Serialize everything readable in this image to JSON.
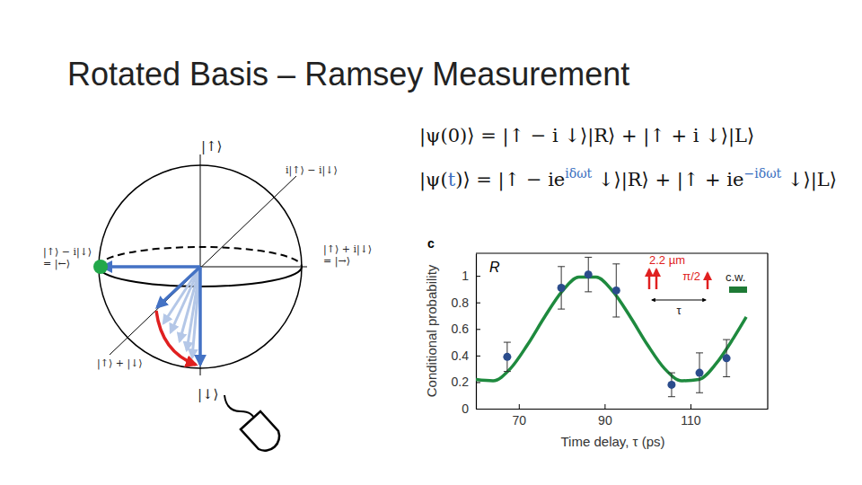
{
  "slide": {
    "title": "Rotated Basis – Ramsey Measurement",
    "equations": [
      [
        {
          "text": "|ψ(0)⟩ = |↑ − i ↓⟩|R⟩ + |↑ + i ↓⟩|L⟩",
          "sup": false
        }
      ],
      [
        {
          "text": "|ψ(",
          "sup": false
        },
        {
          "text": "t",
          "sup": false
        },
        {
          "text": ")⟩ = |↑ − ie",
          "sup": false
        },
        {
          "text": "iδωt",
          "sup": true
        },
        {
          "text": " ↓⟩|R⟩ + |↑ + ie",
          "sup": false
        },
        {
          "text": "−iδωt",
          "sup": true
        },
        {
          "text": " ↓⟩|L⟩",
          "sup": false
        }
      ]
    ],
    "sphere": {
      "top": "|↑⟩",
      "bottom": "|↓⟩",
      "back": "i|↑⟩ − i|↓⟩",
      "left": [
        "|↑⟩ − i|↓⟩",
        "= |←⟩"
      ],
      "right": [
        "|↑⟩ + i|↓⟩",
        "= |→⟩"
      ],
      "front": "|↑⟩ + |↓⟩"
    }
  },
  "chart_data": {
    "type": "scatter",
    "panel_label": "c",
    "annotation": "R",
    "x_label": "Time delay, τ (ps)",
    "y_label": "Conditional probability",
    "xlim": [
      60,
      128
    ],
    "xticks": [
      70,
      90,
      110
    ],
    "ylim": [
      0,
      1.17
    ],
    "yticks": [
      0,
      0.2,
      0.4,
      0.6,
      0.8,
      1
    ],
    "inset": {
      "distance_label": "2.2 µm",
      "pulse_label": "π/2",
      "cw_label": "c.w.",
      "delay_label": "τ"
    },
    "series": [
      {
        "type": "scatter",
        "color": "#2b4c8c",
        "marker": "circle",
        "x": [
          67.3,
          79.9,
          86.2,
          92.7,
          105.6,
          112.1,
          118.4
        ],
        "values": [
          0.39,
          0.91,
          1.01,
          0.89,
          0.18,
          0.27,
          0.38
        ],
        "errors": [
          0.11,
          0.16,
          0.13,
          0.2,
          0.09,
          0.15,
          0.14
        ]
      },
      {
        "type": "line",
        "color": "#1e8a3e",
        "line_style": "solid",
        "x": [
          60,
          64,
          68,
          72,
          76,
          80,
          84,
          88,
          92,
          96,
          100,
          104,
          108,
          112,
          116,
          120,
          123
        ],
        "values": [
          0.22,
          0.21,
          0.3,
          0.48,
          0.69,
          0.88,
          0.99,
          0.99,
          0.88,
          0.69,
          0.48,
          0.3,
          0.21,
          0.22,
          0.34,
          0.53,
          0.69
        ]
      }
    ]
  }
}
